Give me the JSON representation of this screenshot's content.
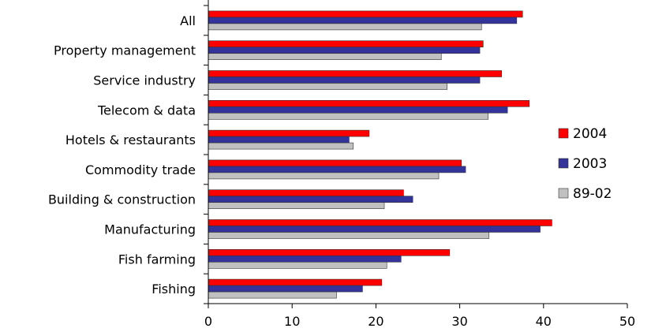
{
  "chart_data": {
    "type": "bar",
    "orientation": "horizontal",
    "title": "",
    "categories": [
      "All",
      "Property management",
      "Service industry",
      "Telecom & data",
      "Hotels & restaurants",
      "Commodity trade",
      "Building & construction",
      "Manufacturing",
      "Fish farming",
      "Fishing"
    ],
    "series": [
      {
        "name": "2004",
        "color": "#ff0000",
        "values": [
          37.5,
          32.8,
          35.0,
          38.3,
          19.2,
          30.2,
          23.3,
          41.0,
          28.8,
          20.7
        ]
      },
      {
        "name": "2003",
        "color": "#33339a",
        "values": [
          36.8,
          32.4,
          32.4,
          35.7,
          16.8,
          30.7,
          24.4,
          39.6,
          23.0,
          18.4
        ]
      },
      {
        "name": "89-02",
        "color": "#c0c0c0",
        "values": [
          32.6,
          27.8,
          28.5,
          33.4,
          17.3,
          27.5,
          21.0,
          33.5,
          21.3,
          15.3
        ]
      }
    ],
    "xlim": [
      0,
      50
    ],
    "xticks": [
      0,
      10,
      20,
      30,
      40,
      50
    ],
    "xlabel": "",
    "ylabel": "",
    "legend_position": "right",
    "grid": false
  }
}
